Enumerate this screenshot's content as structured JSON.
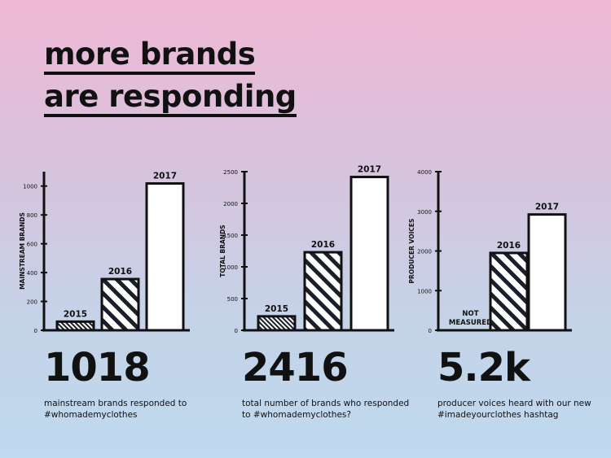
{
  "title_lines": [
    "more brands",
    "are responding"
  ],
  "chart_data": [
    {
      "type": "bar",
      "ylabel": "MAINSTREAM BRANDS",
      "ylim": [
        0,
        1100
      ],
      "yticks": [
        0,
        200,
        400,
        600,
        800,
        1000
      ],
      "categories": [
        "2015",
        "2016",
        "2017"
      ],
      "values": [
        60,
        355,
        1018
      ],
      "bar_styles": [
        "dense-hatch",
        "hatch",
        "white"
      ],
      "stat": "1018",
      "caption": "mainstream brands responded to #whomademyclothes"
    },
    {
      "type": "bar",
      "ylabel": "TOTAL BRANDS",
      "ylim": [
        0,
        2500
      ],
      "yticks": [
        0,
        500,
        1000,
        1500,
        2000,
        2500
      ],
      "categories": [
        "2015",
        "2016",
        "2017"
      ],
      "values": [
        220,
        1230,
        2416
      ],
      "bar_styles": [
        "dense-hatch",
        "hatch",
        "white"
      ],
      "stat": "2416",
      "caption": "total number of brands who responded to #whomademyclothes?"
    },
    {
      "type": "bar",
      "ylabel": "PRODUCER VOICES",
      "ylim": [
        0,
        4000
      ],
      "yticks": [
        0,
        1000,
        2000,
        3000,
        4000
      ],
      "categories": [
        "NOT MEASURED",
        "2016",
        "2017"
      ],
      "values": [
        null,
        1950,
        2920
      ],
      "bar_styles": [
        "none",
        "hatch",
        "white"
      ],
      "stat": "5.2k",
      "caption": "producer voices heard with our new #imadeyourclothes hashtag"
    }
  ]
}
